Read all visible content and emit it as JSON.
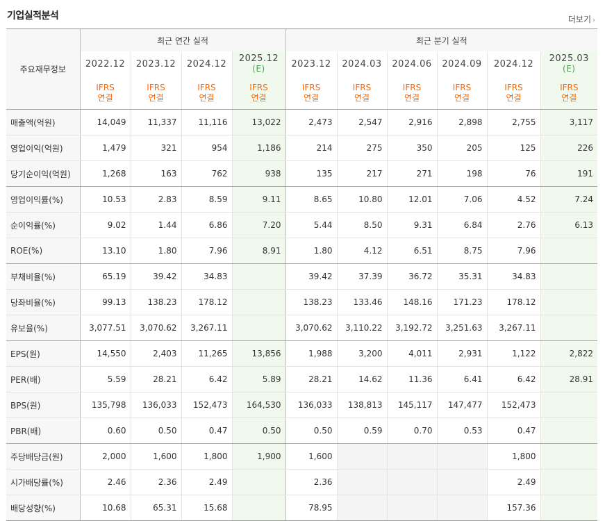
{
  "section_title": "기업실적분석",
  "more_label": "더보기",
  "corner_label": "주요재무정보",
  "annual_group_label": "최근 연간 실적",
  "quarter_group_label": "최근 분기 실적",
  "annual_periods": [
    "2022.12",
    "2023.12",
    "2024.12",
    "2025.12"
  ],
  "quarter_periods": [
    "2023.12",
    "2024.03",
    "2024.06",
    "2024.09",
    "2024.12",
    "2025.03"
  ],
  "estimate_mark": "(E)",
  "ifrs_label": "IFRS",
  "consolidated_label": "연결",
  "rows": [
    {
      "label": "매출액(억원)",
      "values": [
        "14,049",
        "11,337",
        "11,116",
        "13,022",
        "2,473",
        "2,547",
        "2,916",
        "2,898",
        "2,755",
        "3,117"
      ]
    },
    {
      "label": "영업이익(억원)",
      "values": [
        "1,479",
        "321",
        "954",
        "1,186",
        "214",
        "275",
        "350",
        "205",
        "125",
        "226"
      ]
    },
    {
      "label": "당기순이익(억원)",
      "values": [
        "1,268",
        "163",
        "762",
        "938",
        "135",
        "217",
        "271",
        "198",
        "76",
        "191"
      ]
    },
    {
      "label": "영업이익률(%)",
      "values": [
        "10.53",
        "2.83",
        "8.59",
        "9.11",
        "8.65",
        "10.80",
        "12.01",
        "7.06",
        "4.52",
        "7.24"
      ]
    },
    {
      "label": "순이익률(%)",
      "values": [
        "9.02",
        "1.44",
        "6.86",
        "7.20",
        "5.44",
        "8.50",
        "9.31",
        "6.84",
        "2.76",
        "6.13"
      ]
    },
    {
      "label": "ROE(%)",
      "values": [
        "13.10",
        "1.80",
        "7.96",
        "8.91",
        "1.80",
        "4.12",
        "6.51",
        "8.75",
        "7.96",
        ""
      ]
    },
    {
      "label": "부채비율(%)",
      "values": [
        "65.19",
        "39.42",
        "34.83",
        "",
        "39.42",
        "37.39",
        "36.72",
        "35.31",
        "34.83",
        ""
      ]
    },
    {
      "label": "당좌비율(%)",
      "values": [
        "99.13",
        "138.23",
        "178.12",
        "",
        "138.23",
        "133.46",
        "148.16",
        "171.23",
        "178.12",
        ""
      ]
    },
    {
      "label": "유보율(%)",
      "values": [
        "3,077.51",
        "3,070.62",
        "3,267.11",
        "",
        "3,070.62",
        "3,110.22",
        "3,192.72",
        "3,251.63",
        "3,267.11",
        ""
      ]
    },
    {
      "label": "EPS(원)",
      "values": [
        "14,550",
        "2,403",
        "11,265",
        "13,856",
        "1,988",
        "3,200",
        "4,011",
        "2,931",
        "1,122",
        "2,822"
      ]
    },
    {
      "label": "PER(배)",
      "values": [
        "5.59",
        "28.21",
        "6.42",
        "5.89",
        "28.21",
        "14.62",
        "11.36",
        "6.41",
        "6.42",
        "28.91"
      ]
    },
    {
      "label": "BPS(원)",
      "values": [
        "135,798",
        "136,033",
        "152,473",
        "164,530",
        "136,033",
        "138,813",
        "145,117",
        "147,477",
        "152,473",
        ""
      ]
    },
    {
      "label": "PBR(배)",
      "values": [
        "0.60",
        "0.50",
        "0.47",
        "0.50",
        "0.50",
        "0.59",
        "0.70",
        "0.53",
        "0.47",
        ""
      ]
    },
    {
      "label": "주당배당금(원)",
      "values": [
        "2,000",
        "1,600",
        "1,800",
        "1,900",
        "1,600",
        "",
        "",
        "",
        "1,800",
        ""
      ]
    },
    {
      "label": "시가배당률(%)",
      "values": [
        "2.46",
        "2.36",
        "2.49",
        "",
        "2.36",
        "",
        "",
        "",
        "2.49",
        ""
      ]
    },
    {
      "label": "배당성향(%)",
      "values": [
        "10.68",
        "65.31",
        "15.68",
        "",
        "78.95",
        "",
        "",
        "",
        "157.36",
        ""
      ]
    }
  ]
}
